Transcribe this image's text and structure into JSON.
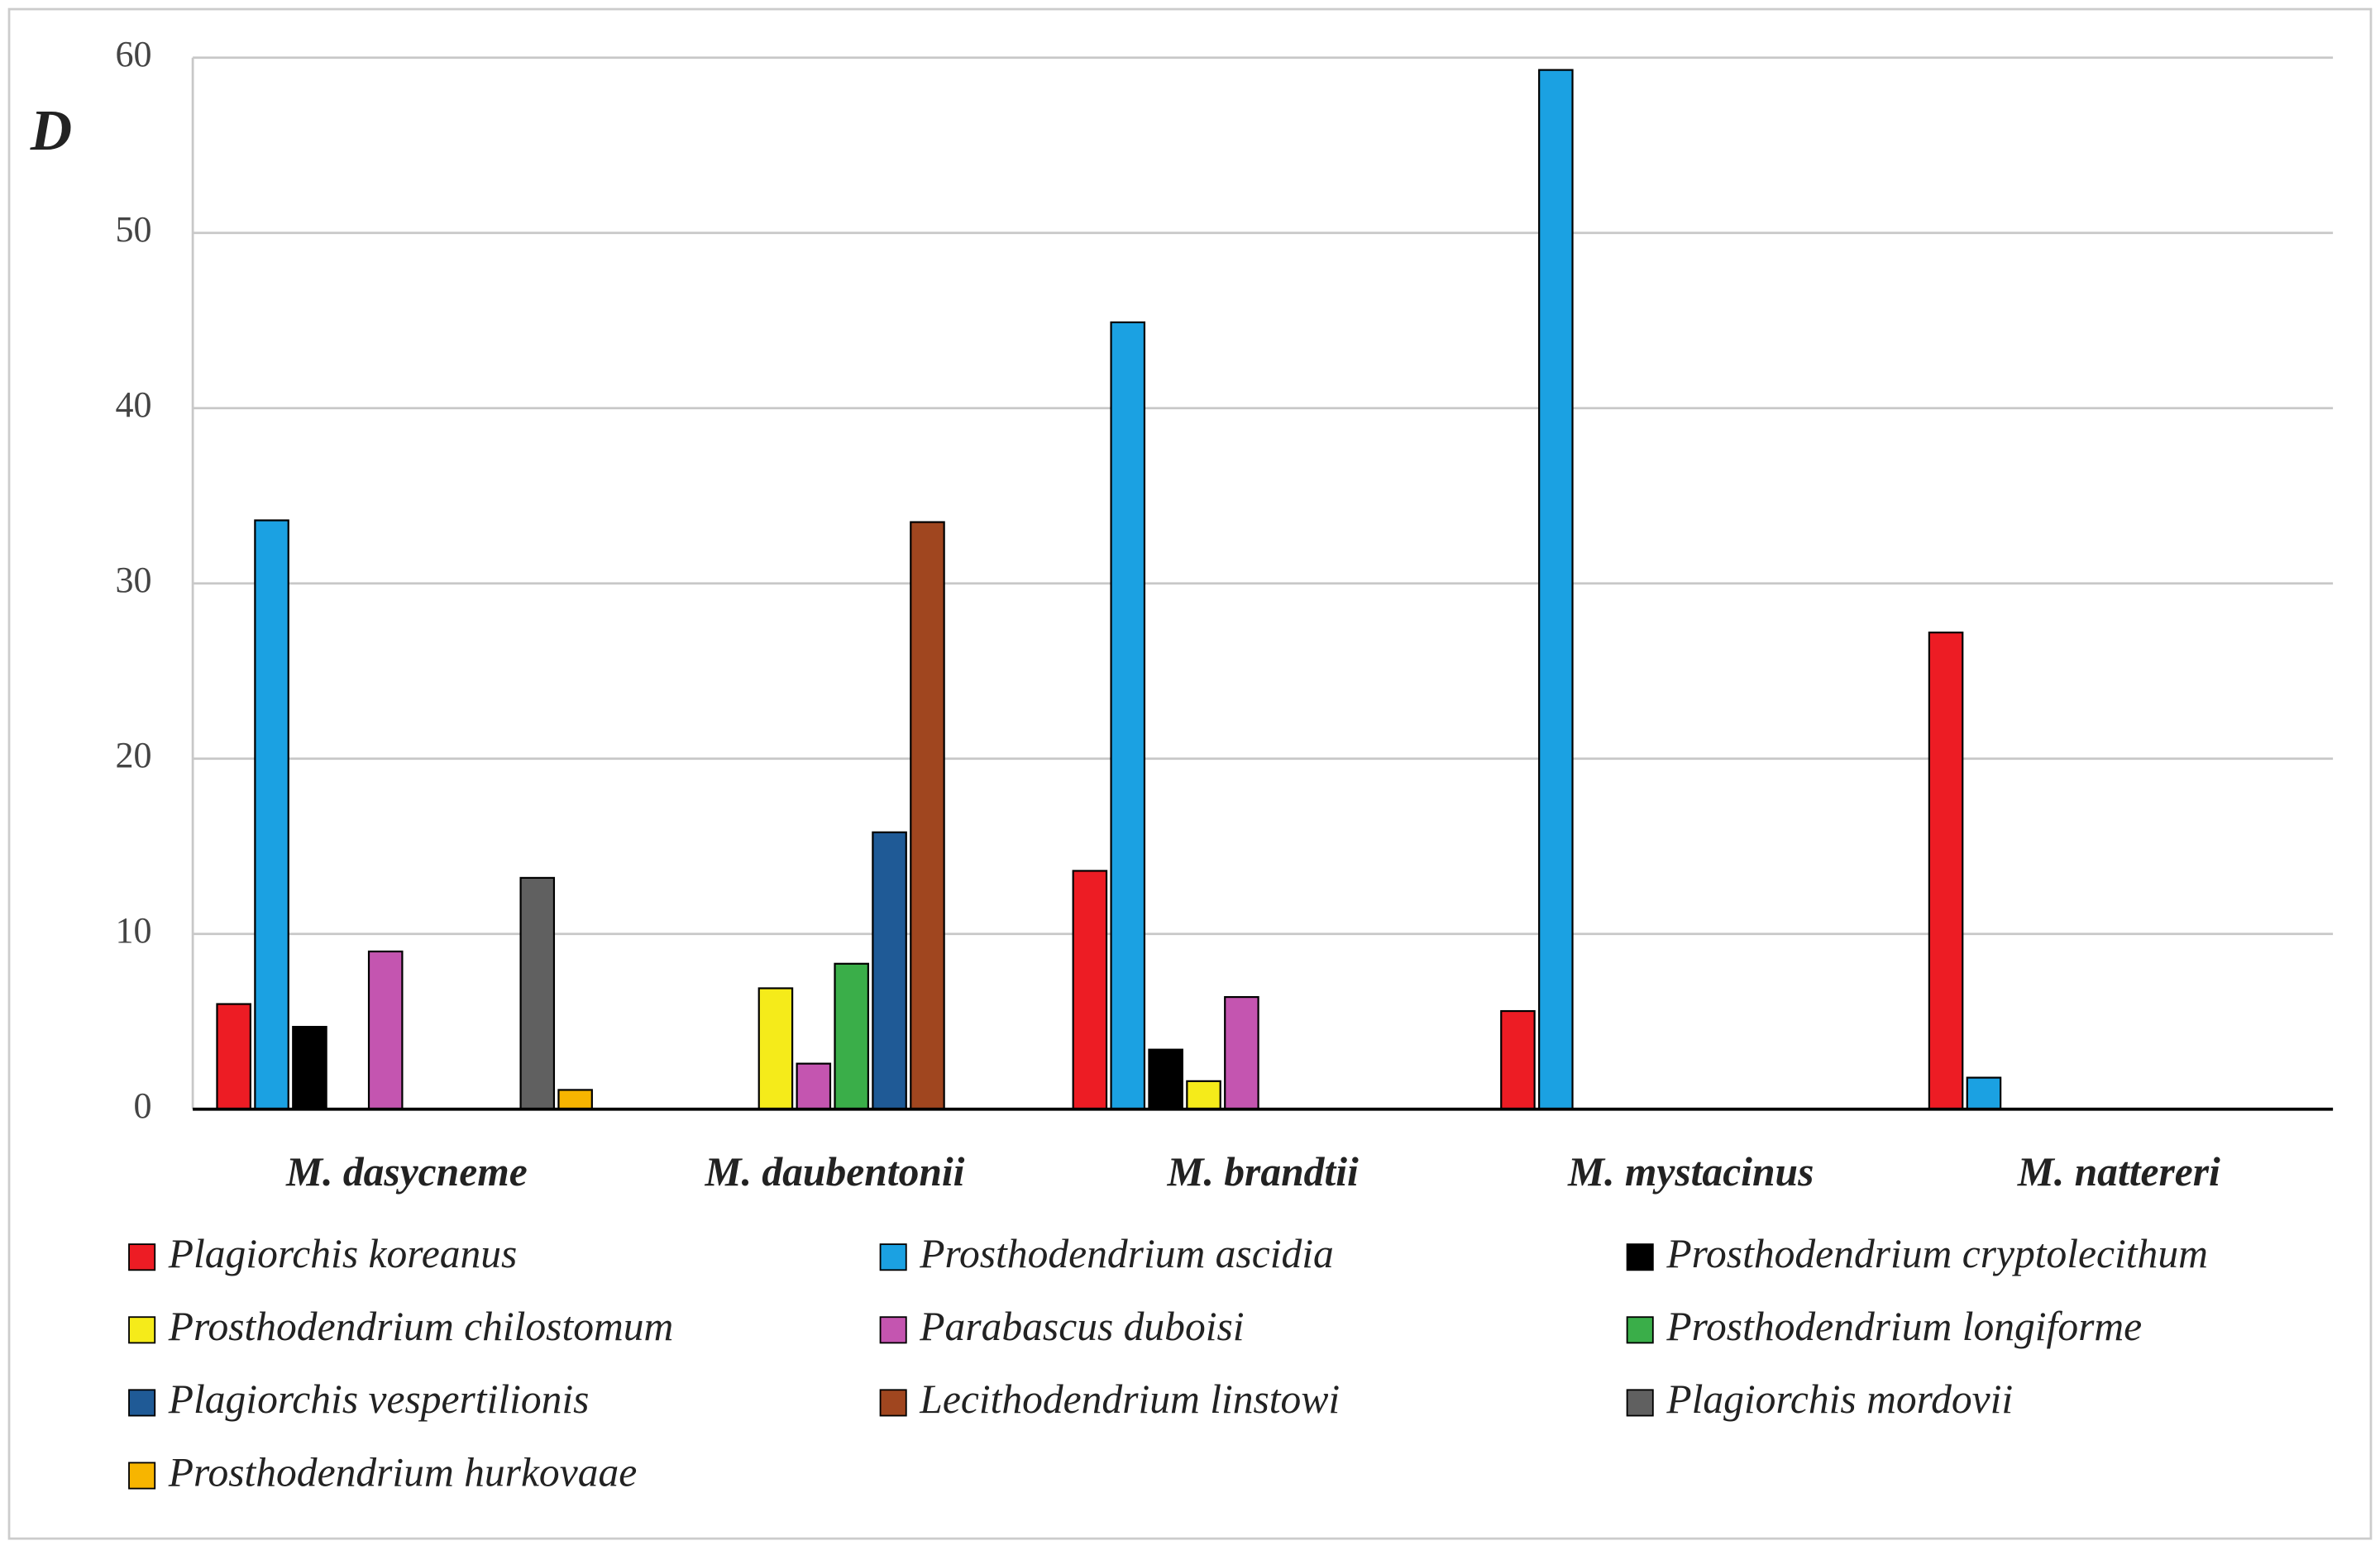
{
  "chart_data": {
    "type": "bar",
    "y_label": "D",
    "categories": [
      "M. dasycneme",
      "M. daubentonii",
      "M. brandtii",
      "M. mystacinus",
      "M. nattereri"
    ],
    "series": [
      {
        "name": "Plagiorchis koreanus",
        "color": "#ed1c24",
        "values": [
          6,
          null,
          13.6,
          5.6,
          27.2
        ]
      },
      {
        "name": "Prosthodendrium ascidia",
        "color": "#1ba1e2",
        "values": [
          33.6,
          null,
          44.9,
          59.3,
          1.8
        ]
      },
      {
        "name": "Prosthodendrium cryptolecithum",
        "color": "#000000",
        "values": [
          4.7,
          null,
          3.4,
          null,
          null
        ]
      },
      {
        "name": "Prosthodendrium chilostomum",
        "color": "#f5eb1a",
        "values": [
          null,
          6.9,
          1.6,
          null,
          null
        ]
      },
      {
        "name": "Parabascus duboisi",
        "color": "#c455b0",
        "values": [
          9,
          2.6,
          6.4,
          null,
          null
        ]
      },
      {
        "name": "Prosthodendrium longiforme",
        "color": "#3aae49",
        "values": [
          null,
          8.3,
          null,
          null,
          null
        ]
      },
      {
        "name": "Plagiorchis vespertilionis",
        "color": "#1f5a96",
        "values": [
          null,
          15.8,
          null,
          null,
          null
        ]
      },
      {
        "name": "Lecithodendrium linstowi",
        "color": "#a0461f",
        "values": [
          null,
          33.5,
          null,
          null,
          null
        ]
      },
      {
        "name": "Plagiorchis mordovii",
        "color": "#606060",
        "values": [
          13.2,
          null,
          null,
          null,
          null
        ]
      },
      {
        "name": "Prosthodendrium hurkovaae",
        "color": "#f7b500",
        "values": [
          1.1,
          null,
          null,
          null,
          null
        ]
      }
    ],
    "ylim": [
      0,
      60
    ],
    "yticks": [
      0,
      10,
      20,
      30,
      40,
      50,
      60
    ],
    "grid": true
  }
}
